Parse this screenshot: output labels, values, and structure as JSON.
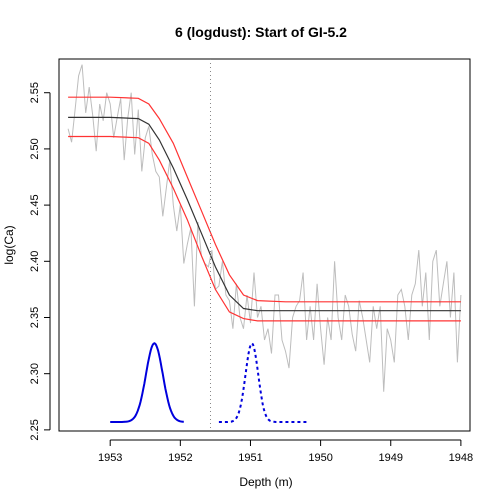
{
  "chart_data": {
    "type": "line",
    "title": "6 (logdust): Start of GI-5.2",
    "xlabel": "Depth (m)",
    "ylabel": "log(Ca)",
    "xlim": [
      1953.73,
      1947.87
    ],
    "ylim": [
      2.249,
      2.58
    ],
    "x_ticks": [
      "1953",
      "1952",
      "1951",
      "1950",
      "1949",
      "1948"
    ],
    "y_ticks": [
      "2.25",
      "2.30",
      "2.35",
      "2.40",
      "2.45",
      "2.50",
      "2.55"
    ],
    "grid": false,
    "transition_marker": {
      "x": 1951.57,
      "style": "dotted",
      "color": "#888888"
    },
    "series": [
      {
        "role": "observations",
        "color": "#bdbdbd",
        "x": [
          1953.6,
          1953.55,
          1953.5,
          1953.45,
          1953.4,
          1953.35,
          1953.3,
          1953.25,
          1953.2,
          1953.15,
          1953.1,
          1953.05,
          1953.0,
          1952.95,
          1952.9,
          1952.85,
          1952.8,
          1952.75,
          1952.7,
          1952.65,
          1952.6,
          1952.55,
          1952.5,
          1952.45,
          1952.4,
          1952.35,
          1952.3,
          1952.25,
          1952.2,
          1952.15,
          1952.1,
          1952.05,
          1952.0,
          1951.95,
          1951.9,
          1951.85,
          1951.8,
          1951.75,
          1951.7,
          1951.65,
          1951.6,
          1951.55,
          1951.5,
          1951.45,
          1951.4,
          1951.35,
          1951.3,
          1951.25,
          1951.2,
          1951.15,
          1951.1,
          1951.05,
          1951.0,
          1950.95,
          1950.9,
          1950.85,
          1950.8,
          1950.75,
          1950.7,
          1950.65,
          1950.6,
          1950.55,
          1950.5,
          1950.45,
          1950.4,
          1950.35,
          1950.3,
          1950.25,
          1950.2,
          1950.15,
          1950.1,
          1950.05,
          1950.0,
          1949.95,
          1949.9,
          1949.85,
          1949.8,
          1949.75,
          1949.7,
          1949.65,
          1949.6,
          1949.55,
          1949.5,
          1949.45,
          1949.4,
          1949.35,
          1949.3,
          1949.25,
          1949.2,
          1949.15,
          1949.1,
          1949.05,
          1949.0,
          1948.95,
          1948.9,
          1948.85,
          1948.8,
          1948.75,
          1948.7,
          1948.65,
          1948.6,
          1948.55,
          1948.5,
          1948.45,
          1948.4,
          1948.35,
          1948.3,
          1948.25,
          1948.2,
          1948.15,
          1948.1,
          1948.05,
          1948.0
        ],
        "y": [
          2.518,
          2.506,
          2.535,
          2.565,
          2.575,
          2.532,
          2.555,
          2.53,
          2.498,
          2.54,
          2.525,
          2.55,
          2.54,
          2.51,
          2.528,
          2.545,
          2.49,
          2.527,
          2.55,
          2.495,
          2.535,
          2.48,
          2.51,
          2.52,
          2.495,
          2.48,
          2.475,
          2.44,
          2.465,
          2.49,
          2.45,
          2.427,
          2.45,
          2.398,
          2.415,
          2.43,
          2.36,
          2.435,
          2.405,
          2.398,
          2.395,
          2.41,
          2.375,
          2.378,
          2.4,
          2.37,
          2.365,
          2.34,
          2.38,
          2.35,
          2.34,
          2.37,
          2.345,
          2.39,
          2.35,
          2.36,
          2.33,
          2.34,
          2.318,
          2.37,
          2.37,
          2.33,
          2.32,
          2.305,
          2.35,
          2.36,
          2.365,
          2.39,
          2.33,
          2.36,
          2.33,
          2.38,
          2.34,
          2.308,
          2.35,
          2.33,
          2.4,
          2.35,
          2.33,
          2.37,
          2.36,
          2.335,
          2.32,
          2.365,
          2.35,
          2.33,
          2.31,
          2.36,
          2.34,
          2.36,
          2.284,
          2.34,
          2.33,
          2.31,
          2.37,
          2.375,
          2.36,
          2.33,
          2.37,
          2.38,
          2.41,
          2.36,
          2.39,
          2.33,
          2.4,
          2.41,
          2.36,
          2.38,
          2.4,
          2.35,
          2.39,
          2.31,
          2.37
        ]
      },
      {
        "role": "fit",
        "color": "#333333",
        "x": [
          1953.6,
          1953.0,
          1952.6,
          1952.45,
          1952.3,
          1952.1,
          1951.9,
          1951.7,
          1951.5,
          1951.3,
          1951.1,
          1950.9,
          1950.5,
          1949.5,
          1948.0
        ],
        "y": [
          2.528,
          2.528,
          2.527,
          2.522,
          2.508,
          2.483,
          2.455,
          2.425,
          2.395,
          2.37,
          2.358,
          2.356,
          2.356,
          2.356,
          2.356
        ]
      },
      {
        "role": "upper_bound",
        "color": "#ff3333",
        "x": [
          1953.6,
          1953.0,
          1952.6,
          1952.45,
          1952.3,
          1952.1,
          1951.9,
          1951.7,
          1951.5,
          1951.3,
          1951.1,
          1950.9,
          1950.5,
          1949.5,
          1948.0
        ],
        "y": [
          2.546,
          2.546,
          2.545,
          2.54,
          2.527,
          2.505,
          2.475,
          2.445,
          2.415,
          2.388,
          2.37,
          2.365,
          2.364,
          2.364,
          2.364
        ]
      },
      {
        "role": "lower_bound",
        "color": "#ff3333",
        "x": [
          1953.6,
          1953.0,
          1952.6,
          1952.45,
          1952.3,
          1952.1,
          1951.9,
          1951.7,
          1951.5,
          1951.3,
          1951.1,
          1950.9,
          1950.5,
          1949.5,
          1948.0
        ],
        "y": [
          2.511,
          2.511,
          2.51,
          2.505,
          2.49,
          2.465,
          2.437,
          2.405,
          2.375,
          2.355,
          2.349,
          2.347,
          2.347,
          2.347,
          2.347
        ]
      }
    ],
    "distributions": [
      {
        "role": "onset_density",
        "color": "#0000dd",
        "style": "solid",
        "center": 1952.37,
        "sd": 0.12,
        "range": [
          1953.0,
          1951.95
        ],
        "baseline": 2.257,
        "peak": 2.327
      },
      {
        "role": "end_density",
        "color": "#0000dd",
        "style": "dashed",
        "center": 1950.98,
        "sd": 0.09,
        "range": [
          1951.45,
          1950.2
        ],
        "baseline": 2.257,
        "peak": 2.327
      }
    ]
  }
}
